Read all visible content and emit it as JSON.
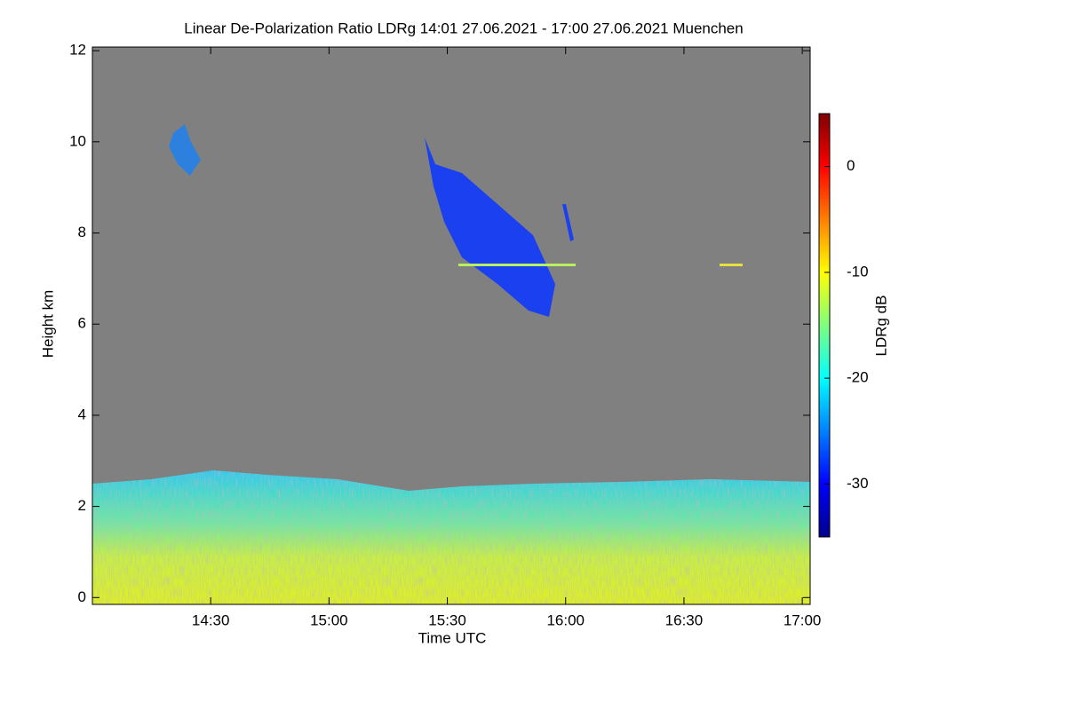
{
  "chart_data": {
    "type": "heatmap",
    "title": "Linear De-Polarization Ratio LDRg   14:01 27.06.2021 - 17:00 27.06.2021 Muenchen",
    "x_label": "Time UTC",
    "y_label": "Height km",
    "xlim": [
      840,
      1022
    ],
    "xticks": [
      {
        "value": 870,
        "label": "14:30"
      },
      {
        "value": 900,
        "label": "15:00"
      },
      {
        "value": 930,
        "label": "15:30"
      },
      {
        "value": 960,
        "label": "16:00"
      },
      {
        "value": 990,
        "label": "16:30"
      },
      {
        "value": 1020,
        "label": "17:00"
      }
    ],
    "ylim": [
      -0.15,
      12.08
    ],
    "yticks": [
      0,
      2,
      4,
      6,
      8,
      10,
      12
    ],
    "colorbar": {
      "label": "LDRg dB",
      "clim": [
        -35,
        5
      ],
      "ticks": [
        0,
        -10,
        -20,
        -30
      ],
      "colormap": "jet"
    },
    "background_color": "#808080"
  }
}
